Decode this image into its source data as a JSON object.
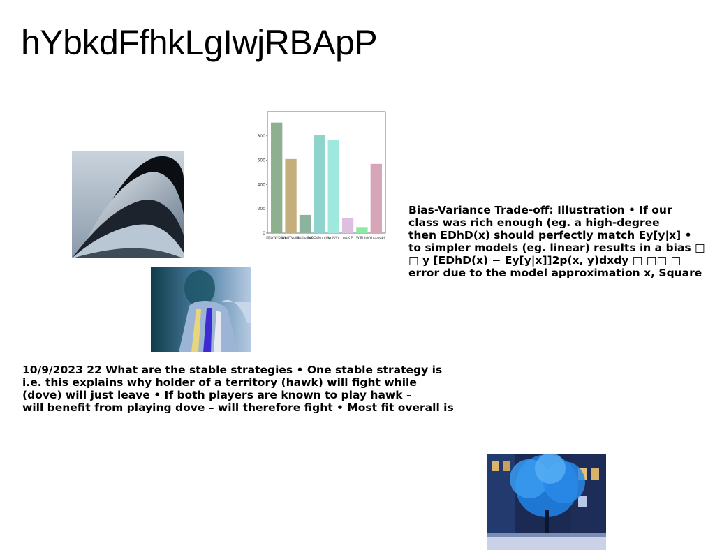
{
  "title": "hYbkdFfhkLgIwjRBApP",
  "text_blocks": {
    "bias_variance": "Bias-Variance Trade-off: Illustration • If our\nclass was rich enough (eg. a high-degree\nthen EDhD(x) should perfectly match Ey[y|x] •\nto simpler models (eg. linear) results in a bias □\n□ y [EDhD(x) − Ey[y|x]]2p(x, y)dxdy □ □□ □\nerror due to the model approximation x, Square",
    "strategies": "10/9/2023 22 What are the stable strategies • One stable strategy is\ni.e. this explains why holder of a territory (hawk) will fight while\n(dove) will just leave • If both players are known to play hawk –\nwill benefit from playing dove – will therefore fight • Most fit overall is"
  },
  "images": {
    "abstract_waves": "abstract dark wave shapes",
    "figure_portrait": "blurred figure portrait in blue tones",
    "blue_tree": "tree with blue lights in front of building"
  },
  "chart_data": {
    "type": "bar",
    "categories": [
      "EBLYNYDWnt",
      "WbGTVqjbd",
      "SkKjuuwx",
      "SoOQdNnmUVr",
      "tmlUVr",
      "mLK P",
      "WJBhlsl",
      "sYhLkwabj"
    ],
    "values": [
      910,
      610,
      150,
      805,
      765,
      125,
      50,
      570
    ],
    "colors": [
      "#8fb08f",
      "#c4ae7b",
      "#8bb39e",
      "#8fd4cc",
      "#9ee8dd",
      "#ddbfe0",
      "#8ee8a4",
      "#d6a5b8"
    ],
    "yticks": [
      0,
      200,
      400,
      600,
      800
    ],
    "ylim": [
      0,
      1000
    ],
    "title": "",
    "xlabel": "",
    "ylabel": ""
  }
}
